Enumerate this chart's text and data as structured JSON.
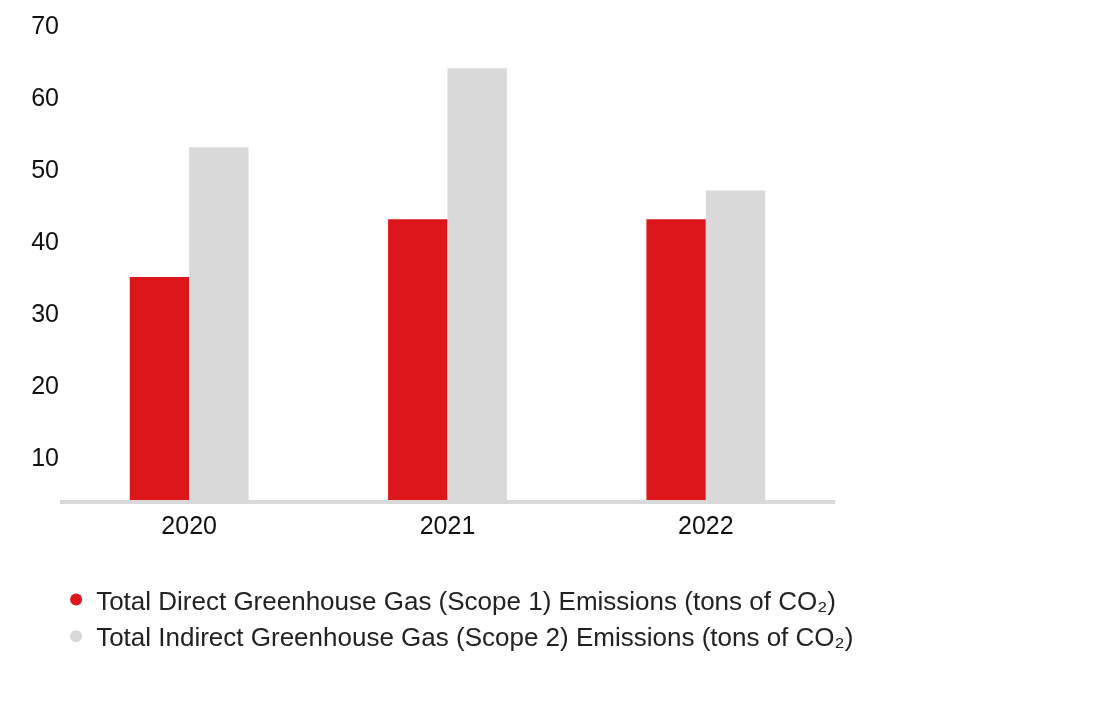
{
  "chart_data": {
    "type": "bar",
    "categories": [
      "2020",
      "2021",
      "2022"
    ],
    "series": [
      {
        "name": "Total Direct Greenhouse Gas (Scope 1) Emissions (tons of CO₂)",
        "color": "#dc161b",
        "values": [
          35,
          43,
          43
        ]
      },
      {
        "name": "Total Indirect Greenhouse Gas (Scope 2) Emissions (tons of CO₂)",
        "color": "#d9d9d9",
        "values": [
          53,
          64,
          47
        ]
      }
    ],
    "ylim": [
      4,
      70
    ],
    "yticks": [
      10,
      20,
      30,
      40,
      50,
      60,
      70
    ],
    "legend": "bottom",
    "marker": "circle"
  }
}
